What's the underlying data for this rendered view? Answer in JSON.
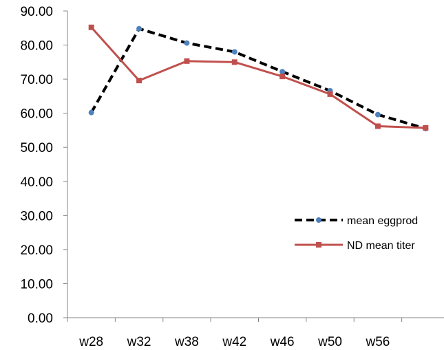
{
  "chart_data": {
    "type": "line",
    "categories": [
      "w28",
      "w32",
      "w38",
      "w42",
      "w46",
      "w50",
      "w56",
      ""
    ],
    "ylim": [
      0,
      90
    ],
    "y_ticks": [
      "0.00",
      "10.00",
      "20.00",
      "30.00",
      "40.00",
      "50.00",
      "60.00",
      "70.00",
      "80.00",
      "90.00"
    ],
    "grid": false,
    "legend_position": "right",
    "series": [
      {
        "name": "mean eggprod",
        "values": [
          60.2,
          84.8,
          80.6,
          78.0,
          72.2,
          66.6,
          59.6,
          55.5
        ],
        "color": "#000000",
        "marker_color": "#4f81bd",
        "line_style": "dashed",
        "marker": "circle"
      },
      {
        "name": "ND mean titer",
        "values": [
          85.2,
          69.6,
          75.3,
          75.0,
          70.8,
          65.6,
          56.2,
          55.7
        ],
        "color": "#c0504d",
        "marker_color": "#c0504d",
        "line_style": "solid",
        "marker": "square"
      }
    ]
  }
}
